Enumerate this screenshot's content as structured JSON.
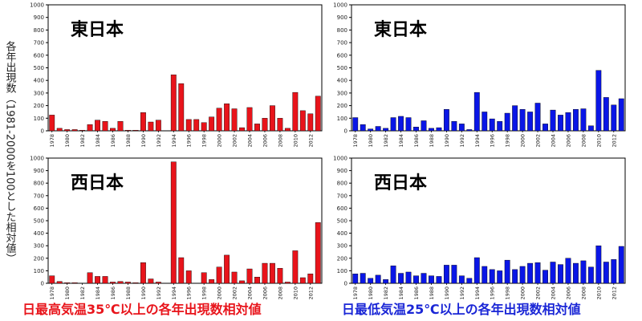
{
  "y_axis_label": "各年出現数（1981-2000を100とした相対値）",
  "captions": {
    "left": "日最高気温35℃以上の各年出現数相対値",
    "right": "日最低気温25℃以上の各年出現数相対値"
  },
  "colors": {
    "red": "#e8141b",
    "blue": "#0a16e6",
    "caption_left": "#e8141b",
    "caption_right": "#1a26d6"
  },
  "chart_data": [
    {
      "type": "bar",
      "id": "east-hot",
      "title": "東日本",
      "series_color": "red",
      "ylim": [
        0,
        1000
      ],
      "yticks": [
        0,
        100,
        200,
        300,
        400,
        500,
        600,
        700,
        800,
        900,
        1000
      ],
      "x_tick_labels": [
        "1978",
        "1980",
        "1982",
        "1984",
        "1986",
        "1988",
        "1990",
        "1992",
        "1994",
        "1996",
        "1998",
        "2000",
        "2002",
        "2004",
        "2006",
        "2008",
        "2010",
        "2012"
      ],
      "categories": [
        "1978",
        "1979",
        "1980",
        "1981",
        "1982",
        "1983",
        "1984",
        "1985",
        "1986",
        "1987",
        "1988",
        "1989",
        "1990",
        "1991",
        "1992",
        "1993",
        "1994",
        "1995",
        "1996",
        "1997",
        "1998",
        "1999",
        "2000",
        "2001",
        "2002",
        "2003",
        "2004",
        "2005",
        "2006",
        "2007",
        "2008",
        "2009",
        "2010",
        "2011",
        "2012",
        "2013"
      ],
      "values": [
        125,
        20,
        10,
        10,
        5,
        50,
        85,
        75,
        20,
        75,
        5,
        5,
        145,
        70,
        85,
        0,
        445,
        375,
        90,
        90,
        65,
        110,
        180,
        215,
        175,
        25,
        185,
        55,
        100,
        200,
        100,
        20,
        305,
        160,
        135,
        275
      ]
    },
    {
      "type": "bar",
      "id": "east-warm",
      "title": "東日本",
      "series_color": "blue",
      "ylim": [
        0,
        1000
      ],
      "yticks": [
        0,
        100,
        200,
        300,
        400,
        500,
        600,
        700,
        800,
        900,
        1000
      ],
      "x_tick_labels": [
        "1978",
        "1980",
        "1982",
        "1984",
        "1986",
        "1988",
        "1990",
        "1992",
        "1994",
        "1996",
        "1998",
        "2000",
        "2002",
        "2004",
        "2006",
        "2008",
        "2010",
        "2012"
      ],
      "categories": [
        "1978",
        "1979",
        "1980",
        "1981",
        "1982",
        "1983",
        "1984",
        "1985",
        "1986",
        "1987",
        "1988",
        "1989",
        "1990",
        "1991",
        "1992",
        "1993",
        "1994",
        "1995",
        "1996",
        "1997",
        "1998",
        "1999",
        "2000",
        "2001",
        "2002",
        "2003",
        "2004",
        "2005",
        "2006",
        "2007",
        "2008",
        "2009",
        "2010",
        "2011",
        "2012",
        "2013"
      ],
      "values": [
        105,
        50,
        15,
        35,
        20,
        105,
        115,
        105,
        30,
        80,
        20,
        25,
        170,
        75,
        55,
        10,
        305,
        150,
        95,
        75,
        140,
        200,
        170,
        150,
        220,
        55,
        165,
        125,
        145,
        170,
        175,
        40,
        480,
        265,
        205,
        255
      ]
    },
    {
      "type": "bar",
      "id": "west-hot",
      "title": "西日本",
      "series_color": "red",
      "ylim": [
        0,
        1000
      ],
      "yticks": [
        0,
        100,
        200,
        300,
        400,
        500,
        600,
        700,
        800,
        900,
        1000
      ],
      "x_tick_labels": [
        "1978",
        "1980",
        "1982",
        "1984",
        "1986",
        "1988",
        "1990",
        "1992",
        "1994",
        "1996",
        "1998",
        "2000",
        "2002",
        "2004",
        "2006",
        "2008",
        "2010",
        "2012"
      ],
      "categories": [
        "1978",
        "1979",
        "1980",
        "1981",
        "1982",
        "1983",
        "1984",
        "1985",
        "1986",
        "1987",
        "1988",
        "1989",
        "1990",
        "1991",
        "1992",
        "1993",
        "1994",
        "1995",
        "1996",
        "1997",
        "1998",
        "1999",
        "2000",
        "2001",
        "2002",
        "2003",
        "2004",
        "2005",
        "2006",
        "2007",
        "2008",
        "2009",
        "2010",
        "2011",
        "2012",
        "2013"
      ],
      "values": [
        60,
        15,
        5,
        5,
        0,
        85,
        55,
        55,
        10,
        15,
        10,
        5,
        165,
        35,
        10,
        0,
        970,
        205,
        100,
        0,
        85,
        30,
        130,
        225,
        90,
        20,
        115,
        50,
        160,
        160,
        120,
        10,
        260,
        45,
        75,
        485
      ]
    },
    {
      "type": "bar",
      "id": "west-warm",
      "title": "西日本",
      "series_color": "blue",
      "ylim": [
        0,
        1000
      ],
      "yticks": [
        0,
        100,
        200,
        300,
        400,
        500,
        600,
        700,
        800,
        900,
        1000
      ],
      "x_tick_labels": [
        "1978",
        "1980",
        "1982",
        "1984",
        "1986",
        "1988",
        "1990",
        "1992",
        "1994",
        "1996",
        "1998",
        "2000",
        "2002",
        "2004",
        "2006",
        "2008",
        "2010",
        "2012"
      ],
      "categories": [
        "1978",
        "1979",
        "1980",
        "1981",
        "1982",
        "1983",
        "1984",
        "1985",
        "1986",
        "1987",
        "1988",
        "1989",
        "1990",
        "1991",
        "1992",
        "1993",
        "1994",
        "1995",
        "1996",
        "1997",
        "1998",
        "1999",
        "2000",
        "2001",
        "2002",
        "2003",
        "2004",
        "2005",
        "2006",
        "2007",
        "2008",
        "2009",
        "2010",
        "2011",
        "2012",
        "2013"
      ],
      "values": [
        75,
        80,
        40,
        65,
        30,
        140,
        80,
        90,
        60,
        80,
        60,
        55,
        145,
        145,
        60,
        40,
        205,
        135,
        110,
        100,
        185,
        110,
        135,
        160,
        165,
        105,
        170,
        150,
        200,
        160,
        180,
        130,
        300,
        170,
        190,
        295
      ]
    }
  ]
}
